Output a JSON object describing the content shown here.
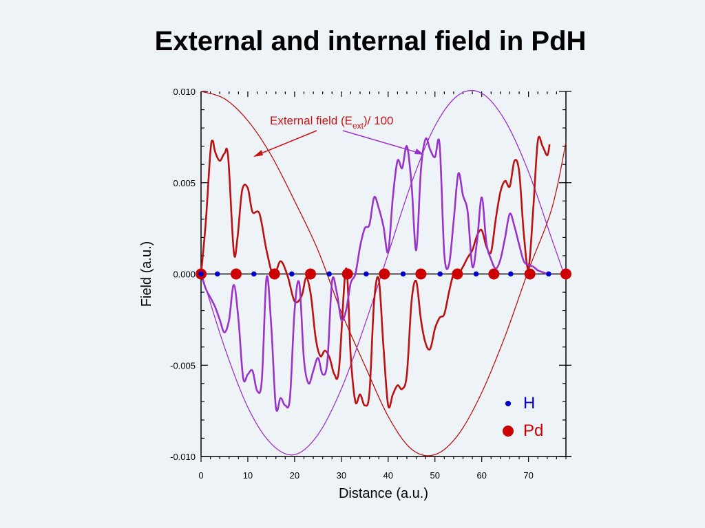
{
  "title": "External and internal field in PdH",
  "chart_data": {
    "type": "line",
    "title": "External and internal field in PdH",
    "xlabel": "Distance (a.u.)",
    "ylabel": "Field (a.u.)",
    "xlim": [
      0,
      78
    ],
    "ylim": [
      -0.01,
      0.01
    ],
    "x_ticks": [
      0,
      10,
      20,
      30,
      40,
      50,
      60,
      70
    ],
    "x_tick_labels": [
      "0",
      "10",
      "20",
      "30",
      "40",
      "50",
      "60",
      "70"
    ],
    "y_ticks": [
      -0.01,
      -0.005,
      0.0,
      0.005,
      0.01
    ],
    "y_tick_labels": [
      "-0.010",
      "-0.005",
      "0.000",
      "0.005",
      "0.010"
    ],
    "annotation": {
      "text_main": "External field (E",
      "text_sub": "ext",
      "text_end": ")/ 100"
    },
    "colors": {
      "red": "#bb1111",
      "purple": "#9933cc",
      "blue": "#0000cc",
      "marker_red": "#cc0000"
    },
    "series": [
      {
        "color": "red",
        "style": "thin",
        "x": [
          0,
          5,
          10,
          15,
          20,
          25,
          30,
          35,
          40,
          45,
          50,
          55,
          60,
          65,
          70,
          75,
          78
        ],
        "y": [
          0.01,
          0.0096,
          0.0084,
          0.0065,
          0.004,
          0.0013,
          -0.0021,
          -0.005,
          -0.0078,
          -0.0096,
          -0.0099,
          -0.0088,
          -0.0065,
          -0.0034,
          0.0002,
          0.0036,
          0.0072
        ]
      },
      {
        "color": "purple",
        "style": "thin",
        "x": [
          0,
          5,
          10,
          15,
          20,
          25,
          30,
          35,
          40,
          45,
          50,
          55,
          60,
          65,
          70,
          75,
          78
        ],
        "y": [
          0.0001,
          -0.004,
          -0.0073,
          -0.0093,
          -0.0099,
          -0.0088,
          -0.0063,
          -0.0028,
          0.0011,
          0.005,
          0.0081,
          0.0098,
          0.0099,
          0.0084,
          0.0056,
          0.0019,
          -0.0003
        ]
      },
      {
        "color": "red",
        "style": "thick",
        "x": [
          0,
          1,
          2,
          2.5,
          3,
          4,
          5,
          5.8,
          7,
          7.8,
          8.8,
          10,
          11,
          12.5,
          14,
          15.5,
          17,
          18.5,
          20,
          21.5,
          22.5,
          23.5,
          24.5,
          25.5,
          26.5,
          27.5,
          28.5,
          29.5,
          31,
          32,
          33,
          34,
          35,
          36,
          37,
          38,
          39,
          40,
          41,
          42,
          43,
          44,
          45,
          46,
          47,
          48,
          49,
          50,
          51,
          52,
          53,
          54,
          55,
          56,
          57,
          58,
          59,
          60,
          61,
          62,
          63,
          64,
          65,
          66,
          67,
          68,
          69,
          70,
          71,
          72,
          73,
          74,
          74.5
        ],
        "y": [
          0,
          0.0028,
          0.0067,
          0.0073,
          0.0067,
          0.0062,
          0.0066,
          0.0064,
          0.0012,
          0.002,
          0.0046,
          0.0047,
          0.0034,
          0.0033,
          0.0013,
          -0.0001,
          0.0007,
          -0.0001,
          -0.0015,
          -0.0012,
          -0.0002,
          -0.0012,
          -0.0035,
          -0.0045,
          -0.0042,
          -0.0046,
          -0.0055,
          -0.0052,
          0.0003,
          -0.0045,
          -0.007,
          -0.0066,
          -0.0072,
          -0.0065,
          -0.0015,
          -0.0003,
          -0.004,
          -0.0072,
          -0.0066,
          -0.0061,
          -0.0063,
          -0.0055,
          -0.0015,
          -0.0004,
          -0.0025,
          -0.0038,
          -0.0041,
          -0.003,
          -0.0024,
          -0.0022,
          -0.001,
          0,
          0,
          0.0004,
          0.0009,
          0.0013,
          0.0021,
          0.0024,
          0.0015,
          0.0012,
          0.003,
          0.0045,
          0.0051,
          0.0048,
          0.0062,
          0.0056,
          0.0022,
          0.0003,
          0.0035,
          0.0073,
          0.007,
          0.0065,
          0.0071
        ]
      },
      {
        "color": "purple",
        "style": "thick",
        "x": [
          0,
          1,
          2,
          3,
          4,
          5,
          6,
          7,
          8,
          9,
          10,
          11,
          12,
          13,
          14,
          15,
          16,
          17,
          18,
          19,
          20,
          21,
          22,
          23,
          24,
          25,
          26,
          27,
          28,
          29,
          30,
          31,
          32,
          33,
          34,
          35,
          36,
          37,
          38,
          39,
          40,
          41,
          42,
          43,
          44,
          45,
          46,
          47,
          48,
          49,
          50,
          51,
          52,
          53,
          54,
          55,
          56,
          57,
          58,
          59,
          60,
          61,
          62,
          63,
          64,
          65,
          66,
          67,
          68,
          69,
          70,
          71,
          72,
          73,
          74,
          74.5
        ],
        "y": [
          0,
          -0.0008,
          -0.0013,
          -0.0018,
          -0.0025,
          -0.0032,
          -0.0025,
          -0.0006,
          -0.0025,
          -0.0057,
          -0.0055,
          -0.0053,
          -0.0064,
          -0.0058,
          -0.0002,
          -0.0028,
          -0.0073,
          -0.0068,
          -0.0072,
          -0.0068,
          -0.002,
          -0.0005,
          -0.0047,
          -0.006,
          -0.0053,
          -0.0046,
          -0.0055,
          -0.0048,
          -0.0004,
          -0.001,
          -0.0025,
          -0.002,
          -0.0005,
          0,
          0.0015,
          0.0025,
          0.0027,
          0.0042,
          0.0036,
          0.0026,
          0.0012,
          0.0042,
          0.0062,
          0.0058,
          0.007,
          0.0049,
          0.0013,
          0.0057,
          0.0074,
          0.0068,
          0.0064,
          0.0071,
          0.0011,
          0.0005,
          0.0029,
          0.0055,
          0.0043,
          0.0034,
          0.0004,
          0.0018,
          0.0042,
          0.0017,
          0.0008,
          0.0003,
          0.0008,
          0.002,
          0.0033,
          0.0026,
          0.0016,
          0.0007,
          0.0005,
          0.0004,
          0.0002,
          0.0001,
          0,
          0
        ]
      }
    ],
    "markers": {
      "H": {
        "color": "blue",
        "x": [
          0,
          3.5,
          11.3,
          19.4,
          27.4,
          35.3,
          43.2,
          51.1,
          58.8,
          66.2,
          74.3
        ]
      },
      "Pd": {
        "color": "marker_red",
        "x": [
          0,
          7.5,
          15.7,
          23.4,
          31.3,
          39.2,
          47.0,
          54.8,
          62.6,
          70.3,
          78
        ]
      }
    },
    "legend": [
      {
        "label": "H",
        "color": "blue",
        "marker": "small-dot"
      },
      {
        "label": "Pd",
        "color": "marker_red",
        "marker": "large-dot"
      }
    ],
    "legend_position": "bottom-right",
    "grid": false
  }
}
